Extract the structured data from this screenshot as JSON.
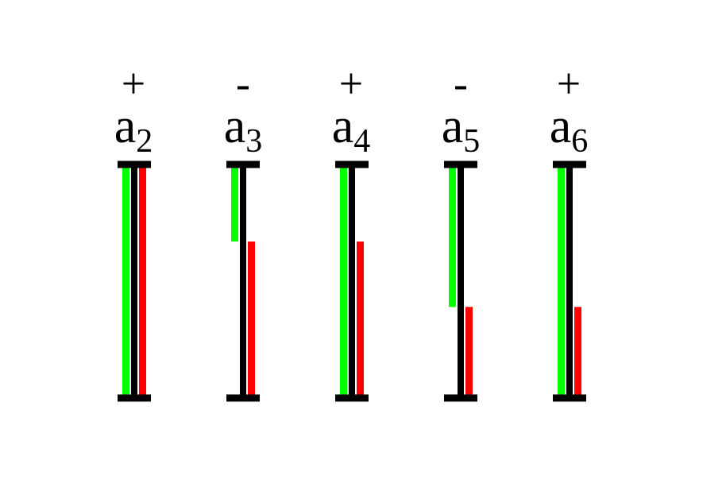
{
  "colors": {
    "axis": "#000000",
    "green": "#00ff00",
    "red": "#ff0000"
  },
  "columns": [
    {
      "sign": "+",
      "base": "a",
      "sub": "2",
      "green_from": 0.0,
      "green_to": 1.0,
      "red_from": 0.0,
      "red_to": 1.0,
      "green_side": "left",
      "red_side": "right"
    },
    {
      "sign": "-",
      "base": "a",
      "sub": "3",
      "green_from": 0.0,
      "green_to": 0.33,
      "red_from": 0.33,
      "red_to": 1.0,
      "green_side": "left",
      "red_side": "right"
    },
    {
      "sign": "+",
      "base": "a",
      "sub": "4",
      "green_from": 0.0,
      "green_to": 1.0,
      "red_from": 0.33,
      "red_to": 1.0,
      "green_side": "left",
      "red_side": "right"
    },
    {
      "sign": "-",
      "base": "a",
      "sub": "5",
      "green_from": 0.0,
      "green_to": 0.61,
      "red_from": 0.61,
      "red_to": 1.0,
      "green_side": "left",
      "red_side": "right"
    },
    {
      "sign": "+",
      "base": "a",
      "sub": "6",
      "green_from": 0.0,
      "green_to": 1.0,
      "red_from": 0.61,
      "red_to": 1.0,
      "green_side": "left",
      "red_side": "right"
    }
  ]
}
